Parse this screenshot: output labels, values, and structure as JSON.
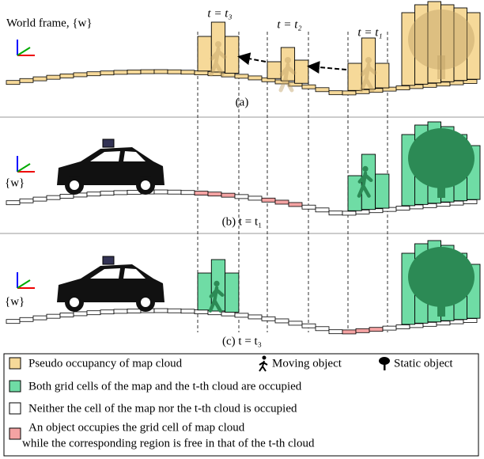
{
  "world_frame_label": "World frame, {w}",
  "panel_a": {
    "times": [
      "t = t₃",
      "t = t₂",
      "t = t₁"
    ],
    "label": "(a)"
  },
  "panel_b": {
    "frame_label": "{w}",
    "label": "(b) t = t₁"
  },
  "panel_c": {
    "frame_label": "{w}",
    "label": "(c) t = t₃"
  },
  "legend": {
    "pseudo": "Pseudo occupancy of map cloud",
    "moving": "Moving object",
    "static": "Static object",
    "both": "Both grid cells of the map and the t-th cloud are occupied",
    "neither": "Neither the cell of the map nor the t-th cloud is occupied",
    "free_line1": "An object occupies the grid cell of map cloud",
    "free_line2": "while the corresponding region is free in that of the t-th cloud"
  }
}
